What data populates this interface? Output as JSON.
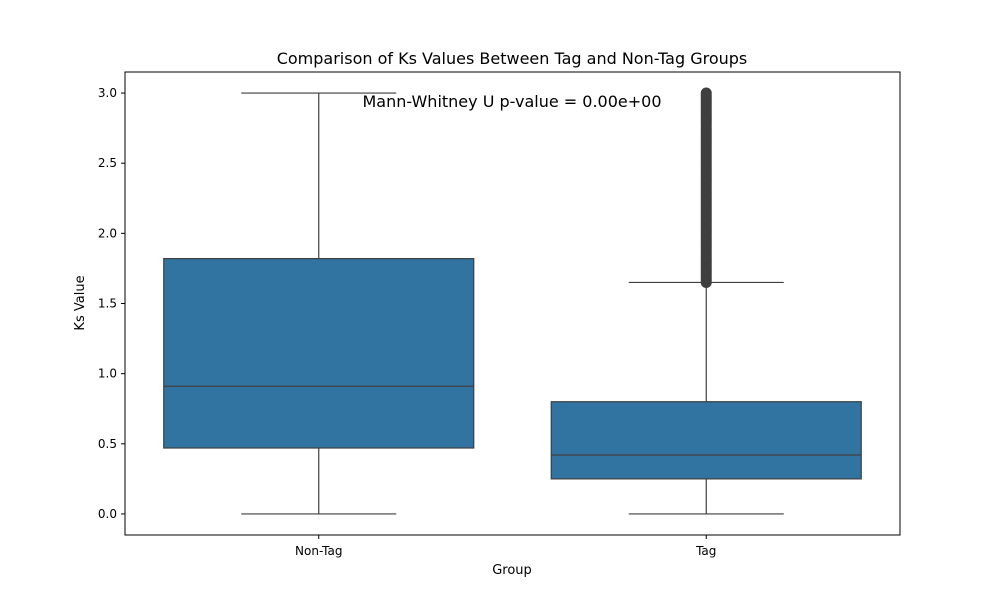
{
  "chart_data": {
    "type": "box",
    "title": "Comparison of Ks Values Between Tag and Non-Tag Groups",
    "xlabel": "Group",
    "ylabel": "Ks Value",
    "categories": [
      "Non-Tag",
      "Tag"
    ],
    "ylim": [
      -0.15,
      3.15
    ],
    "yticks": [
      "0.0",
      "0.5",
      "1.0",
      "1.5",
      "2.0",
      "2.5",
      "3.0"
    ],
    "grid": false,
    "box_color": "#3274a1",
    "line_color": "#3f3f3f",
    "boxes": [
      {
        "category": "Non-Tag",
        "whisker_low": 0.0,
        "q1": 0.47,
        "median": 0.91,
        "q3": 1.82,
        "whisker_high": 3.0,
        "outliers_range": null
      },
      {
        "category": "Tag",
        "whisker_low": 0.0,
        "q1": 0.25,
        "median": 0.42,
        "q3": 0.8,
        "whisker_high": 1.65,
        "outliers_range": [
          1.65,
          3.0
        ]
      }
    ],
    "annotation": {
      "text": "Mann-Whitney U p-value = 0.00e+00",
      "color": "#ff0000"
    }
  }
}
